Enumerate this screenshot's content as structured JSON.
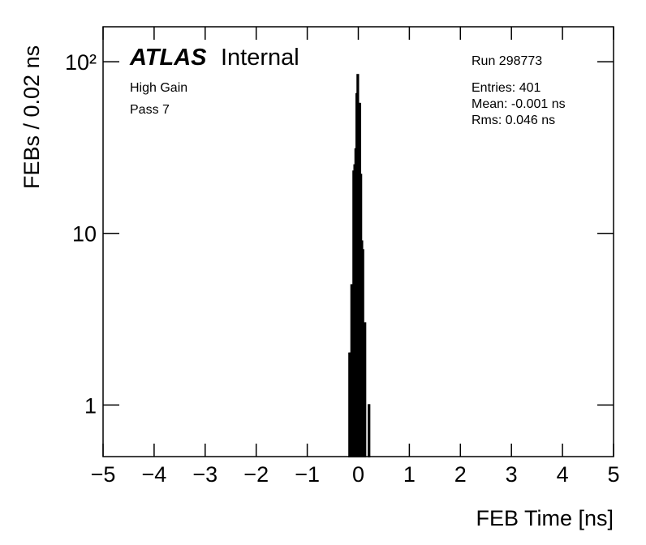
{
  "chart_data": {
    "type": "histogram",
    "xlabel": "FEB Time [ns]",
    "ylabel": "FEBs / 0.02 ns",
    "annotations": {
      "experiment": "ATLAS",
      "status": "Internal",
      "gain": "High Gain",
      "pass": "Pass 7",
      "run": "Run 298773",
      "entries": "Entries: 401",
      "mean": "Mean: -0.001 ns",
      "rms": "Rms: 0.046 ns"
    },
    "bins": [
      -0.18,
      -0.16,
      -0.14,
      -0.12,
      -0.1,
      -0.08,
      -0.06,
      -0.04,
      -0.02,
      0.0,
      0.02,
      0.04,
      0.06,
      0.08,
      0.1,
      0.12,
      0.14,
      0.16,
      0.18,
      0.2,
      0.22
    ],
    "values": [
      2,
      2,
      5,
      5,
      23,
      25,
      31,
      65,
      84,
      57,
      57,
      22,
      9,
      8,
      2,
      3,
      0,
      0,
      0,
      1
    ],
    "color": "#000000",
    "xlim": [
      -5,
      5
    ],
    "xticks": [
      {
        "value": -5,
        "label": "−5"
      },
      {
        "value": -4,
        "label": "−4"
      },
      {
        "value": -3,
        "label": "−3"
      },
      {
        "value": -2,
        "label": "−2"
      },
      {
        "value": -1,
        "label": "−1"
      },
      0,
      1,
      2,
      3,
      4,
      5
    ],
    "ylim": [
      0.5,
      160
    ],
    "yscale": "log",
    "yticks": [
      1,
      10,
      {
        "value": 100,
        "label": "10²"
      }
    ]
  }
}
